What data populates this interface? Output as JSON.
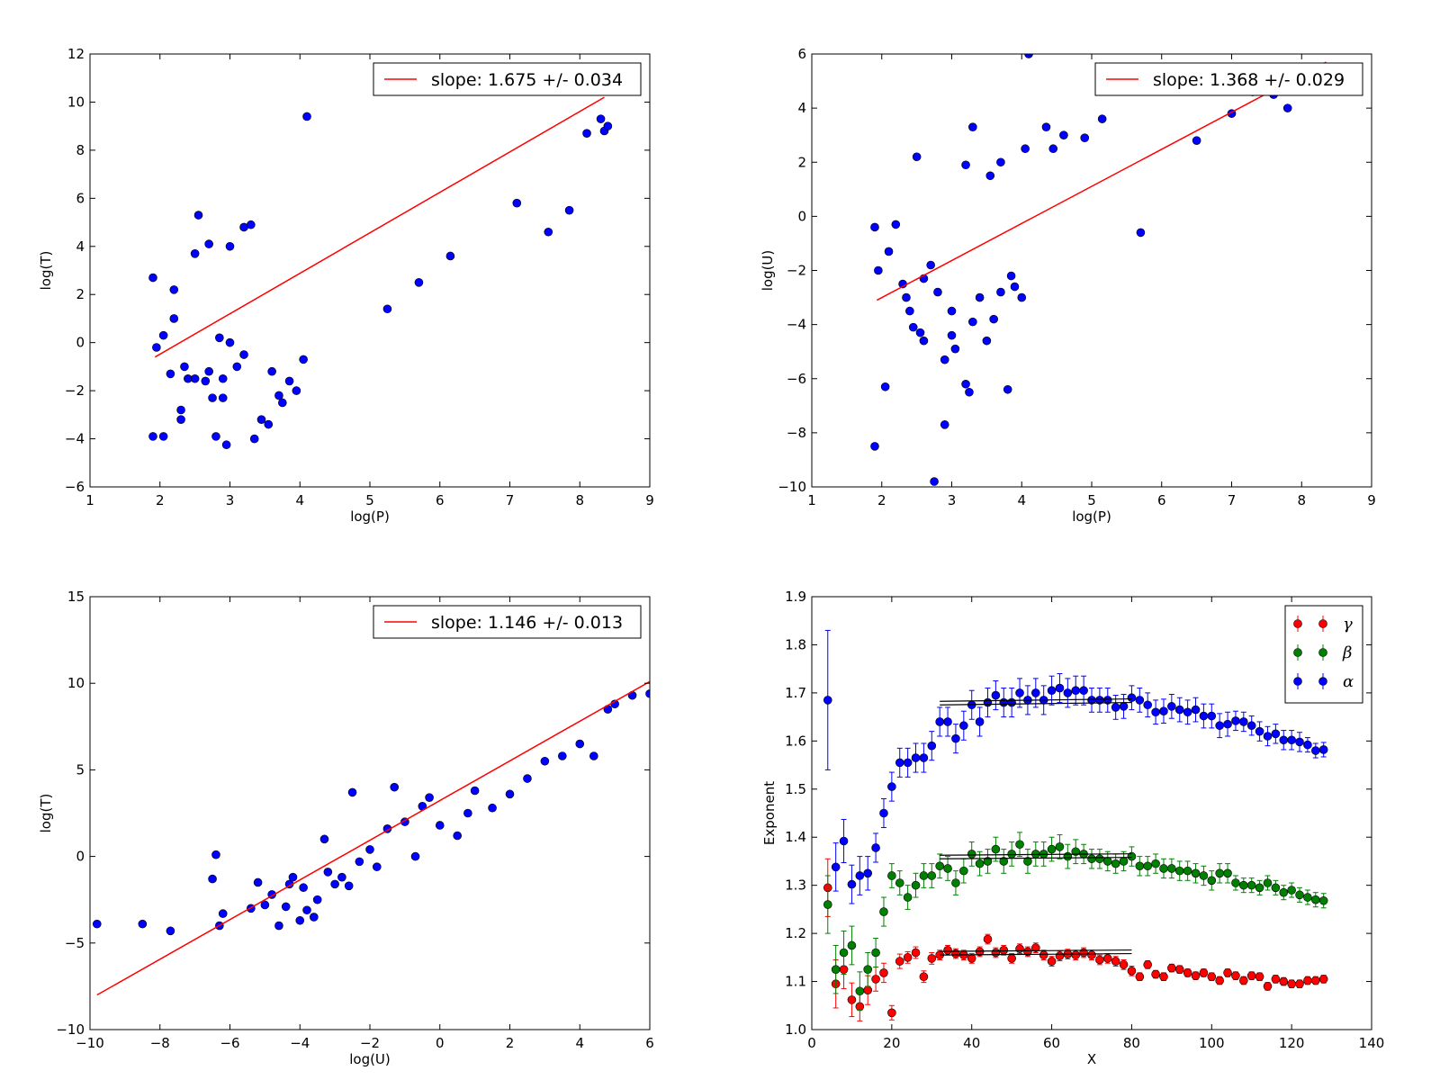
{
  "chart_data": [
    {
      "type": "scatter",
      "xlabel": "log(P)",
      "ylabel": "log(T)",
      "xlim": [
        1,
        9
      ],
      "ylim": [
        -6,
        12
      ],
      "xticks": [
        "1",
        "2",
        "3",
        "4",
        "5",
        "6",
        "7",
        "8",
        "9"
      ],
      "yticks": [
        "−6",
        "−4",
        "−2",
        "0",
        "2",
        "4",
        "6",
        "8",
        "10",
        "12"
      ],
      "legend": "slope: 1.675 +/- 0.034",
      "legend_position": "upper-right",
      "fit_line": {
        "x": [
          1.93,
          8.35
        ],
        "y": [
          -0.6,
          10.2
        ],
        "color": "#ff0000"
      },
      "marker_color": "#0000ff",
      "points": [
        [
          1.9,
          2.7
        ],
        [
          1.95,
          -0.2
        ],
        [
          2.05,
          0.3
        ],
        [
          2.2,
          1.0
        ],
        [
          2.2,
          2.2
        ],
        [
          2.15,
          -1.3
        ],
        [
          2.35,
          -1.0
        ],
        [
          2.4,
          -1.5
        ],
        [
          2.3,
          -2.8
        ],
        [
          2.3,
          -3.2
        ],
        [
          2.5,
          -1.5
        ],
        [
          2.5,
          3.7
        ],
        [
          2.55,
          5.3
        ],
        [
          2.65,
          -1.6
        ],
        [
          2.7,
          4.1
        ],
        [
          2.7,
          -1.2
        ],
        [
          2.75,
          -2.3
        ],
        [
          2.8,
          -3.9
        ],
        [
          2.9,
          -1.5
        ],
        [
          2.9,
          -2.3
        ],
        [
          2.95,
          -4.25
        ],
        [
          3.0,
          4.0
        ],
        [
          1.9,
          -3.9
        ],
        [
          2.05,
          -3.9
        ],
        [
          3.2,
          4.8
        ],
        [
          3.3,
          4.9
        ],
        [
          3.35,
          -4.0
        ],
        [
          3.45,
          -3.2
        ],
        [
          3.55,
          -3.4
        ],
        [
          3.7,
          -2.2
        ],
        [
          3.75,
          -2.5
        ],
        [
          4.1,
          9.4
        ],
        [
          4.05,
          -0.7
        ],
        [
          3.6,
          -1.2
        ],
        [
          3.85,
          -1.6
        ],
        [
          3.95,
          -2.0
        ],
        [
          5.25,
          1.4
        ],
        [
          5.7,
          2.5
        ],
        [
          6.15,
          3.6
        ],
        [
          7.55,
          4.6
        ],
        [
          7.85,
          5.5
        ],
        [
          7.1,
          5.8
        ],
        [
          8.3,
          9.3
        ],
        [
          8.35,
          8.8
        ],
        [
          8.4,
          9.0
        ],
        [
          8.1,
          8.7
        ],
        [
          3.2,
          -0.5
        ],
        [
          3.0,
          0.0
        ],
        [
          2.85,
          0.2
        ],
        [
          3.1,
          -1.0
        ]
      ]
    },
    {
      "type": "scatter",
      "xlabel": "log(P)",
      "ylabel": "log(U)",
      "xlim": [
        1,
        9
      ],
      "ylim": [
        -10,
        6
      ],
      "xticks": [
        "1",
        "2",
        "3",
        "4",
        "5",
        "6",
        "7",
        "8",
        "9"
      ],
      "yticks": [
        "−10",
        "−8",
        "−6",
        "−4",
        "−2",
        "0",
        "2",
        "4",
        "6"
      ],
      "legend": "slope: 1.368 +/- 0.029",
      "legend_position": "upper-right",
      "fit_line": {
        "x": [
          1.93,
          8.35
        ],
        "y": [
          -3.1,
          5.7
        ],
        "color": "#ff0000"
      },
      "marker_color": "#0000ff",
      "points": [
        [
          1.9,
          -0.4
        ],
        [
          1.9,
          -8.5
        ],
        [
          1.95,
          -2.0
        ],
        [
          2.05,
          -6.3
        ],
        [
          2.1,
          -1.3
        ],
        [
          2.2,
          -0.3
        ],
        [
          2.3,
          -2.5
        ],
        [
          2.35,
          -3.0
        ],
        [
          2.5,
          2.2
        ],
        [
          2.55,
          -4.3
        ],
        [
          2.4,
          -3.5
        ],
        [
          2.45,
          -4.1
        ],
        [
          2.6,
          -4.6
        ],
        [
          2.75,
          -9.8
        ],
        [
          2.9,
          -7.7
        ],
        [
          2.9,
          -5.3
        ],
        [
          3.0,
          -4.4
        ],
        [
          3.05,
          -4.9
        ],
        [
          3.2,
          -6.2
        ],
        [
          3.25,
          -6.5
        ],
        [
          3.3,
          -3.9
        ],
        [
          3.5,
          -4.6
        ],
        [
          3.6,
          -3.8
        ],
        [
          3.8,
          -6.4
        ],
        [
          3.2,
          1.9
        ],
        [
          3.3,
          3.3
        ],
        [
          3.55,
          1.5
        ],
        [
          3.7,
          2.0
        ],
        [
          4.05,
          2.5
        ],
        [
          4.1,
          6.0
        ],
        [
          4.35,
          3.3
        ],
        [
          4.45,
          2.5
        ],
        [
          4.6,
          3.0
        ],
        [
          4.9,
          2.9
        ],
        [
          5.15,
          3.6
        ],
        [
          5.7,
          -0.6
        ],
        [
          6.5,
          2.8
        ],
        [
          7.0,
          3.8
        ],
        [
          7.3,
          4.6
        ],
        [
          7.6,
          4.5
        ],
        [
          7.8,
          4.0
        ],
        [
          2.6,
          -2.3
        ],
        [
          2.7,
          -1.8
        ],
        [
          2.8,
          -2.8
        ],
        [
          3.0,
          -3.5
        ],
        [
          3.4,
          -3.0
        ],
        [
          3.7,
          -2.8
        ],
        [
          3.9,
          -2.6
        ],
        [
          4.0,
          -3.0
        ],
        [
          3.85,
          -2.2
        ]
      ]
    },
    {
      "type": "scatter",
      "xlabel": "log(U)",
      "ylabel": "log(T)",
      "xlim": [
        -10,
        6
      ],
      "ylim": [
        -10,
        15
      ],
      "xticks": [
        "−10",
        "−8",
        "−6",
        "−4",
        "−2",
        "0",
        "2",
        "4",
        "6"
      ],
      "yticks": [
        "−10",
        "−5",
        "0",
        "5",
        "10",
        "15"
      ],
      "legend": "slope: 1.146 +/- 0.013",
      "legend_position": "upper-right",
      "fit_line": {
        "x": [
          -9.8,
          6.0
        ],
        "y": [
          -8.0,
          10.1
        ],
        "color": "#ff0000"
      },
      "marker_color": "#0000ff",
      "points": [
        [
          -9.8,
          -3.9
        ],
        [
          -8.5,
          -3.9
        ],
        [
          -7.7,
          -4.3
        ],
        [
          -6.5,
          -1.3
        ],
        [
          -6.4,
          0.1
        ],
        [
          -6.3,
          -4.0
        ],
        [
          -6.2,
          -3.3
        ],
        [
          -5.4,
          -3.0
        ],
        [
          -5.0,
          -2.8
        ],
        [
          -5.2,
          -1.5
        ],
        [
          -4.8,
          -2.2
        ],
        [
          -4.6,
          -4.0
        ],
        [
          -4.4,
          -2.9
        ],
        [
          -4.3,
          -1.6
        ],
        [
          -4.2,
          -1.2
        ],
        [
          -4.0,
          -3.7
        ],
        [
          -3.8,
          -3.1
        ],
        [
          -3.9,
          -1.8
        ],
        [
          -3.6,
          -3.5
        ],
        [
          -3.5,
          -2.5
        ],
        [
          -3.3,
          1.0
        ],
        [
          -3.2,
          -0.9
        ],
        [
          -3.0,
          -1.6
        ],
        [
          -2.8,
          -1.2
        ],
        [
          -2.6,
          -1.7
        ],
        [
          -2.5,
          3.7
        ],
        [
          -2.3,
          -0.3
        ],
        [
          -2.0,
          0.4
        ],
        [
          -1.8,
          -0.6
        ],
        [
          -1.5,
          1.6
        ],
        [
          -1.3,
          4.0
        ],
        [
          -1.0,
          2.0
        ],
        [
          -0.7,
          0.0
        ],
        [
          -0.5,
          2.9
        ],
        [
          -0.3,
          3.4
        ],
        [
          0.0,
          1.8
        ],
        [
          0.5,
          1.2
        ],
        [
          0.8,
          2.5
        ],
        [
          1.0,
          3.8
        ],
        [
          1.5,
          2.8
        ],
        [
          2.0,
          3.6
        ],
        [
          2.5,
          4.5
        ],
        [
          3.0,
          5.5
        ],
        [
          3.5,
          5.8
        ],
        [
          4.0,
          6.5
        ],
        [
          4.4,
          5.8
        ],
        [
          4.8,
          8.5
        ],
        [
          5.0,
          8.8
        ],
        [
          5.5,
          9.3
        ],
        [
          6.0,
          9.4
        ]
      ]
    },
    {
      "type": "errorbar",
      "xlabel": "X",
      "ylabel": "Exponent",
      "xlim": [
        0,
        140
      ],
      "ylim": [
        1.0,
        1.9
      ],
      "xticks": [
        "0",
        "20",
        "40",
        "60",
        "80",
        "100",
        "120",
        "140"
      ],
      "yticks": [
        "1.0",
        "1.1",
        "1.2",
        "1.3",
        "1.4",
        "1.5",
        "1.6",
        "1.7",
        "1.8",
        "1.9"
      ],
      "legend_position": "upper-right",
      "x": [
        4,
        6,
        8,
        10,
        12,
        14,
        16,
        18,
        20,
        22,
        24,
        26,
        28,
        30,
        32,
        34,
        36,
        38,
        40,
        42,
        44,
        46,
        48,
        50,
        52,
        54,
        56,
        58,
        60,
        62,
        64,
        66,
        68,
        70,
        72,
        74,
        76,
        78,
        80,
        82,
        84,
        86,
        88,
        90,
        92,
        94,
        96,
        98,
        100,
        102,
        104,
        106,
        108,
        110,
        112,
        114,
        116,
        118,
        120,
        122,
        124,
        126,
        128
      ],
      "series": [
        {
          "name": "γ",
          "color": "#ff0000",
          "values": [
            1.295,
            1.095,
            1.125,
            1.062,
            1.048,
            1.082,
            1.105,
            1.118,
            1.035,
            1.142,
            1.15,
            1.16,
            1.11,
            1.148,
            1.155,
            1.165,
            1.158,
            1.155,
            1.148,
            1.162,
            1.188,
            1.16,
            1.165,
            1.148,
            1.168,
            1.162,
            1.17,
            1.155,
            1.142,
            1.153,
            1.157,
            1.155,
            1.16,
            1.155,
            1.145,
            1.148,
            1.142,
            1.135,
            1.122,
            1.11,
            1.135,
            1.115,
            1.11,
            1.128,
            1.125,
            1.118,
            1.112,
            1.118,
            1.11,
            1.102,
            1.118,
            1.112,
            1.102,
            1.112,
            1.11,
            1.09,
            1.105,
            1.1,
            1.095,
            1.095,
            1.102,
            1.102,
            1.105
          ],
          "err": [
            0.06,
            0.05,
            0.04,
            0.035,
            0.03,
            0.03,
            0.025,
            0.02,
            0.015,
            0.015,
            0.012,
            0.012,
            0.012,
            0.012,
            0.01,
            0.01,
            0.01,
            0.01,
            0.01,
            0.01,
            0.01,
            0.01,
            0.01,
            0.01,
            0.01,
            0.01,
            0.01,
            0.01,
            0.01,
            0.01,
            0.01,
            0.01,
            0.01,
            0.01,
            0.01,
            0.01,
            0.01,
            0.01,
            0.01,
            0.008,
            0.008,
            0.008,
            0.008,
            0.008,
            0.008,
            0.008,
            0.008,
            0.008,
            0.008,
            0.008,
            0.008,
            0.008,
            0.008,
            0.008,
            0.008,
            0.008,
            0.008,
            0.008,
            0.008,
            0.008,
            0.008,
            0.008,
            0.008
          ],
          "fit": {
            "x": [
              32,
              80
            ],
            "y": [
              1.155,
              1.158
            ]
          }
        },
        {
          "name": "β",
          "color": "#008000",
          "values": [
            1.26,
            1.125,
            1.16,
            1.175,
            1.08,
            1.125,
            1.16,
            1.245,
            1.32,
            1.305,
            1.275,
            1.3,
            1.32,
            1.32,
            1.34,
            1.335,
            1.305,
            1.33,
            1.365,
            1.345,
            1.35,
            1.375,
            1.35,
            1.365,
            1.385,
            1.35,
            1.365,
            1.365,
            1.375,
            1.38,
            1.36,
            1.37,
            1.365,
            1.355,
            1.355,
            1.35,
            1.345,
            1.35,
            1.36,
            1.34,
            1.34,
            1.345,
            1.335,
            1.335,
            1.33,
            1.33,
            1.325,
            1.32,
            1.31,
            1.325,
            1.325,
            1.305,
            1.3,
            1.3,
            1.295,
            1.305,
            1.295,
            1.285,
            1.29,
            1.28,
            1.275,
            1.27,
            1.268
          ],
          "err": [
            0.06,
            0.05,
            0.045,
            0.04,
            0.04,
            0.035,
            0.03,
            0.03,
            0.025,
            0.025,
            0.025,
            0.025,
            0.025,
            0.025,
            0.025,
            0.025,
            0.025,
            0.025,
            0.025,
            0.025,
            0.025,
            0.025,
            0.025,
            0.025,
            0.025,
            0.025,
            0.025,
            0.025,
            0.025,
            0.025,
            0.025,
            0.025,
            0.02,
            0.02,
            0.02,
            0.02,
            0.02,
            0.02,
            0.02,
            0.02,
            0.02,
            0.02,
            0.02,
            0.02,
            0.02,
            0.02,
            0.02,
            0.02,
            0.02,
            0.02,
            0.02,
            0.015,
            0.015,
            0.015,
            0.015,
            0.015,
            0.015,
            0.015,
            0.015,
            0.015,
            0.015,
            0.015,
            0.015
          ],
          "fit": {
            "x": [
              32,
              80
            ],
            "y": [
              1.355,
              1.358
            ]
          }
        },
        {
          "name": "α",
          "color": "#0000ff",
          "values": [
            1.685,
            1.338,
            1.392,
            1.302,
            1.32,
            1.325,
            1.378,
            1.45,
            1.505,
            1.555,
            1.555,
            1.565,
            1.565,
            1.59,
            1.64,
            1.64,
            1.605,
            1.632,
            1.675,
            1.64,
            1.68,
            1.695,
            1.68,
            1.68,
            1.7,
            1.685,
            1.7,
            1.685,
            1.705,
            1.71,
            1.7,
            1.705,
            1.705,
            1.685,
            1.685,
            1.685,
            1.67,
            1.672,
            1.69,
            1.685,
            1.675,
            1.66,
            1.662,
            1.672,
            1.665,
            1.66,
            1.665,
            1.652,
            1.652,
            1.632,
            1.635,
            1.642,
            1.64,
            1.632,
            1.62,
            1.61,
            1.615,
            1.602,
            1.602,
            1.598,
            1.592,
            1.58,
            1.582
          ],
          "err": [
            0.145,
            0.05,
            0.045,
            0.04,
            0.04,
            0.035,
            0.03,
            0.03,
            0.03,
            0.03,
            0.03,
            0.03,
            0.03,
            0.03,
            0.03,
            0.03,
            0.03,
            0.03,
            0.03,
            0.03,
            0.03,
            0.03,
            0.03,
            0.03,
            0.03,
            0.03,
            0.03,
            0.03,
            0.03,
            0.03,
            0.03,
            0.03,
            0.03,
            0.025,
            0.025,
            0.025,
            0.025,
            0.025,
            0.025,
            0.025,
            0.025,
            0.025,
            0.025,
            0.025,
            0.025,
            0.025,
            0.025,
            0.025,
            0.025,
            0.025,
            0.025,
            0.02,
            0.02,
            0.02,
            0.02,
            0.02,
            0.02,
            0.02,
            0.02,
            0.02,
            0.015,
            0.015,
            0.015
          ],
          "fit": {
            "x": [
              32,
              80
            ],
            "y": [
              1.675,
              1.68
            ]
          }
        }
      ]
    }
  ]
}
